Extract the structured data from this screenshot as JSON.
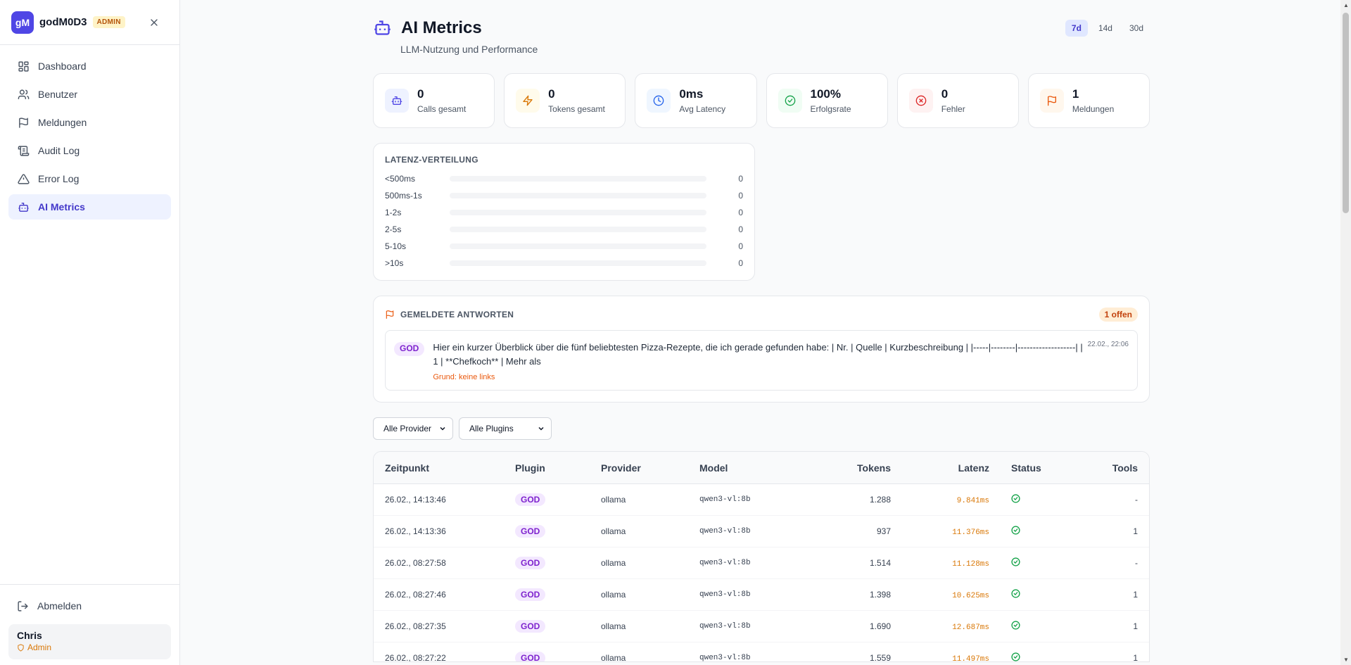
{
  "sidebar": {
    "logo": "gM",
    "brand": "godM0D3",
    "badge": "ADMIN",
    "items": [
      {
        "label": "Dashboard"
      },
      {
        "label": "Benutzer"
      },
      {
        "label": "Meldungen"
      },
      {
        "label": "Audit Log"
      },
      {
        "label": "Error Log"
      },
      {
        "label": "AI Metrics"
      }
    ],
    "logout": "Abmelden",
    "user": {
      "name": "Chris",
      "role": "Admin"
    }
  },
  "header": {
    "title": "AI Metrics",
    "subtitle": "LLM-Nutzung und Performance",
    "ranges": [
      "7d",
      "14d",
      "30d"
    ],
    "active_range": "7d"
  },
  "stats": [
    {
      "value": "0",
      "label": "Calls gesamt",
      "icon": "bot-icon",
      "color": "#4f46e5",
      "bg": "#eef2ff"
    },
    {
      "value": "0",
      "label": "Tokens gesamt",
      "icon": "zap-icon",
      "color": "#d97706",
      "bg": "#fffbeb"
    },
    {
      "value": "0ms",
      "label": "Avg Latency",
      "icon": "clock-icon",
      "color": "#2563eb",
      "bg": "#eff6ff"
    },
    {
      "value": "100%",
      "label": "Erfolgsrate",
      "icon": "check-circle-icon",
      "color": "#16a34a",
      "bg": "#f0fdf4"
    },
    {
      "value": "0",
      "label": "Fehler",
      "icon": "x-circle-icon",
      "color": "#dc2626",
      "bg": "#fef2f2"
    },
    {
      "value": "1",
      "label": "Meldungen",
      "icon": "flag-icon",
      "color": "#ea580c",
      "bg": "#fff7ed"
    }
  ],
  "latency": {
    "title": "LATENZ-VERTEILUNG",
    "buckets": [
      {
        "label": "<500ms",
        "count": "0",
        "fraction": 0
      },
      {
        "label": "500ms-1s",
        "count": "0",
        "fraction": 0
      },
      {
        "label": "1-2s",
        "count": "0",
        "fraction": 0
      },
      {
        "label": "2-5s",
        "count": "0",
        "fraction": 0
      },
      {
        "label": "5-10s",
        "count": "0",
        "fraction": 0
      },
      {
        "label": ">10s",
        "count": "0",
        "fraction": 0
      }
    ]
  },
  "reports": {
    "title": "GEMELDETE ANTWORTEN",
    "open_badge": "1 offen",
    "items": [
      {
        "plugin": "GOD",
        "text": "Hier ein kurzer Überblick über die fünf beliebtesten Pizza-Rezepte, die ich gerade gefunden habe: | Nr. | Quelle | Kurzbeschreibung | |-----|--------|-------------------| | 1 | **Chefkoch** | Mehr als",
        "reason": "Grund: keine links",
        "date": "22.02., 22:06"
      }
    ]
  },
  "filters": {
    "provider": "Alle Provider",
    "plugin": "Alle Plugins"
  },
  "table": {
    "headers": [
      "Zeitpunkt",
      "Plugin",
      "Provider",
      "Model",
      "Tokens",
      "Latenz",
      "Status",
      "Tools"
    ],
    "rows": [
      {
        "time": "26.02., 14:13:46",
        "plugin": "GOD",
        "provider": "ollama",
        "model": "qwen3-vl:8b",
        "tokens": "1.288",
        "latency": "9.841ms",
        "tools": "-"
      },
      {
        "time": "26.02., 14:13:36",
        "plugin": "GOD",
        "provider": "ollama",
        "model": "qwen3-vl:8b",
        "tokens": "937",
        "latency": "11.376ms",
        "tools": "1"
      },
      {
        "time": "26.02., 08:27:58",
        "plugin": "GOD",
        "provider": "ollama",
        "model": "qwen3-vl:8b",
        "tokens": "1.514",
        "latency": "11.128ms",
        "tools": "-"
      },
      {
        "time": "26.02., 08:27:46",
        "plugin": "GOD",
        "provider": "ollama",
        "model": "qwen3-vl:8b",
        "tokens": "1.398",
        "latency": "10.625ms",
        "tools": "1"
      },
      {
        "time": "26.02., 08:27:35",
        "plugin": "GOD",
        "provider": "ollama",
        "model": "qwen3-vl:8b",
        "tokens": "1.690",
        "latency": "12.687ms",
        "tools": "1"
      },
      {
        "time": "26.02., 08:27:22",
        "plugin": "GOD",
        "provider": "ollama",
        "model": "qwen3-vl:8b",
        "tokens": "1.559",
        "latency": "11.497ms",
        "tools": "1"
      }
    ]
  }
}
